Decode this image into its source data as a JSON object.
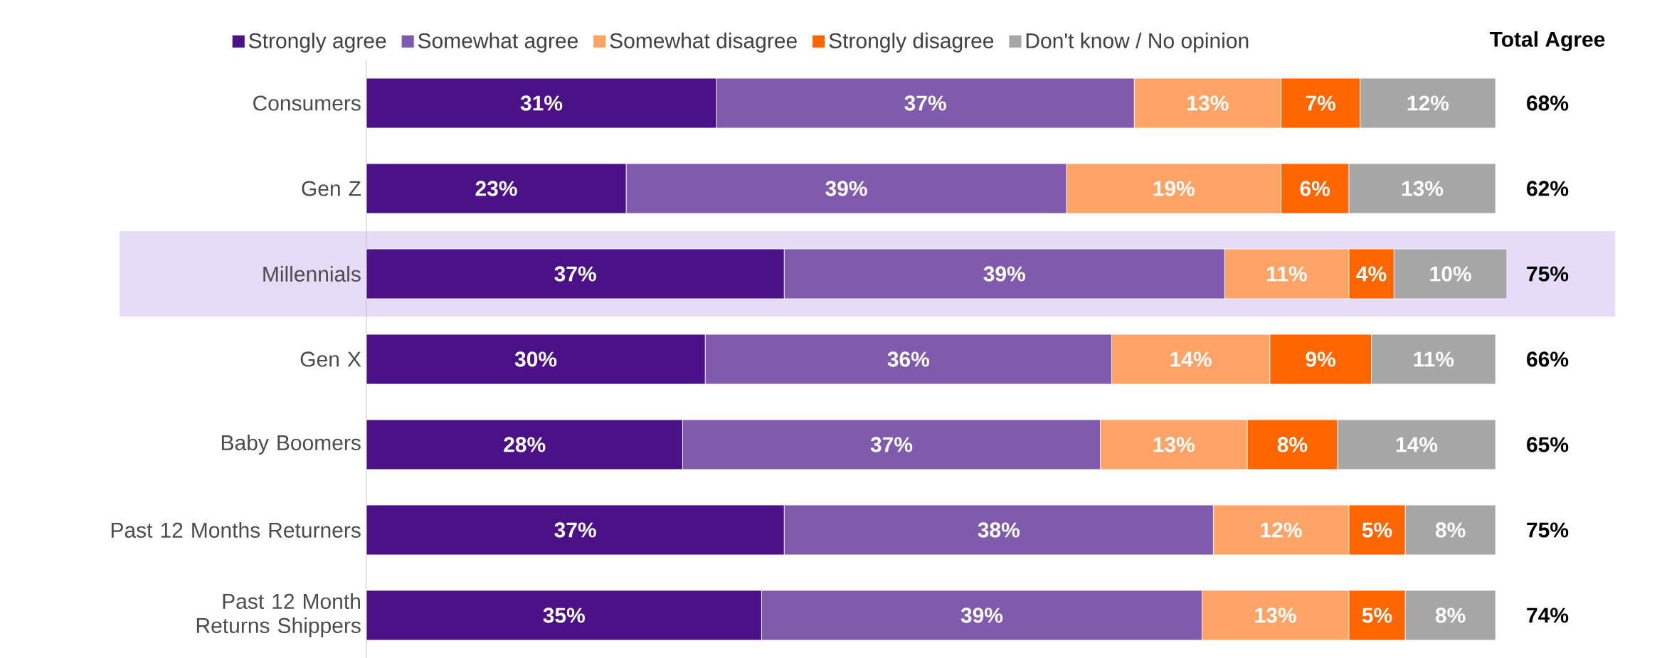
{
  "chart_data": {
    "type": "bar",
    "orientation": "horizontal",
    "stacked": true,
    "legend": "top",
    "categories": [
      "Consumers",
      "Gen Z",
      "Millennials",
      "Gen X",
      "Baby Boomers",
      "Past 12 Months Returners",
      "Past 12 Month Returns Shippers"
    ],
    "series": [
      {
        "name": "Strongly agree",
        "color": "#4b1287",
        "values": [
          31,
          23,
          37,
          30,
          28,
          37,
          35
        ],
        "value_labels": [
          "31%",
          "23%",
          "37%",
          "30%",
          "28%",
          "37%",
          "35%"
        ]
      },
      {
        "name": "Somewhat agree",
        "color": "#7f5aad",
        "values": [
          37,
          39,
          39,
          36,
          37,
          38,
          39
        ],
        "value_labels": [
          "37%",
          "39%",
          "39%",
          "36%",
          "37%",
          "38%",
          "39%"
        ]
      },
      {
        "name": "Somewhat disagree",
        "color": "#ffa366",
        "values": [
          13,
          19,
          11,
          14,
          13,
          12,
          13
        ],
        "value_labels": [
          "13%",
          "19%",
          "11%",
          "14%",
          "13%",
          "12%",
          "13%"
        ]
      },
      {
        "name": "Strongly disagree",
        "color": "#ff6600",
        "values": [
          7,
          6,
          4,
          9,
          8,
          5,
          5
        ],
        "value_labels": [
          "7%",
          "6%",
          "4%",
          "9%",
          "8%",
          "5%",
          "5%"
        ]
      },
      {
        "name": "Don't know / No opinion",
        "color": "#a6a6a6",
        "values": [
          12,
          13,
          10,
          11,
          14,
          8,
          8
        ],
        "value_labels": [
          "12%",
          "13%",
          "10%",
          "11%",
          "14%",
          "8%",
          "8%"
        ]
      }
    ],
    "annotations": [
      "Total Agree",
      "68%",
      "62%",
      "75%",
      "66%",
      "65%",
      "75%",
      "74%"
    ],
    "bands": [
      {
        "axis": "y",
        "from": "Millennials",
        "to": "Millennials",
        "color": "#e6dcf7"
      }
    ]
  }
}
